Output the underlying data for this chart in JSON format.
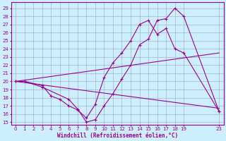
{
  "xlabel": "Windchill (Refroidissement éolien,°C)",
  "bg_color": "#cceeff",
  "grid_color": "#99aabb",
  "line_color": "#990099",
  "xlim": [
    -0.5,
    23.5
  ],
  "ylim": [
    14.7,
    29.7
  ],
  "yticks": [
    15,
    16,
    17,
    18,
    19,
    20,
    21,
    22,
    23,
    24,
    25,
    26,
    27,
    28,
    29
  ],
  "xticks": [
    0,
    1,
    2,
    3,
    4,
    5,
    6,
    7,
    8,
    9,
    10,
    11,
    12,
    13,
    14,
    15,
    16,
    17,
    18,
    19,
    23
  ],
  "line1_x": [
    0,
    1,
    3,
    6,
    7,
    8,
    9,
    10,
    11,
    12,
    13,
    14,
    15,
    16,
    17,
    18,
    19,
    23
  ],
  "line1_y": [
    20.0,
    20.0,
    19.3,
    17.8,
    16.6,
    15.0,
    15.3,
    17.0,
    18.5,
    20.3,
    22.0,
    24.5,
    25.2,
    27.5,
    27.7,
    29.0,
    28.0,
    16.3
  ],
  "line2_x": [
    0,
    1,
    3,
    4,
    5,
    6,
    7,
    8,
    9,
    10,
    11,
    12,
    13,
    14,
    15,
    16,
    17,
    18,
    19,
    23
  ],
  "line2_y": [
    20.0,
    20.0,
    19.5,
    18.2,
    17.8,
    17.0,
    16.5,
    15.5,
    17.2,
    20.5,
    22.3,
    23.5,
    25.0,
    27.0,
    27.5,
    25.8,
    26.5,
    24.0,
    23.5,
    16.3
  ],
  "line3_x": [
    0,
    23
  ],
  "line3_y": [
    20.0,
    23.5
  ],
  "line4_x": [
    0,
    23
  ],
  "line4_y": [
    20.0,
    16.7
  ]
}
